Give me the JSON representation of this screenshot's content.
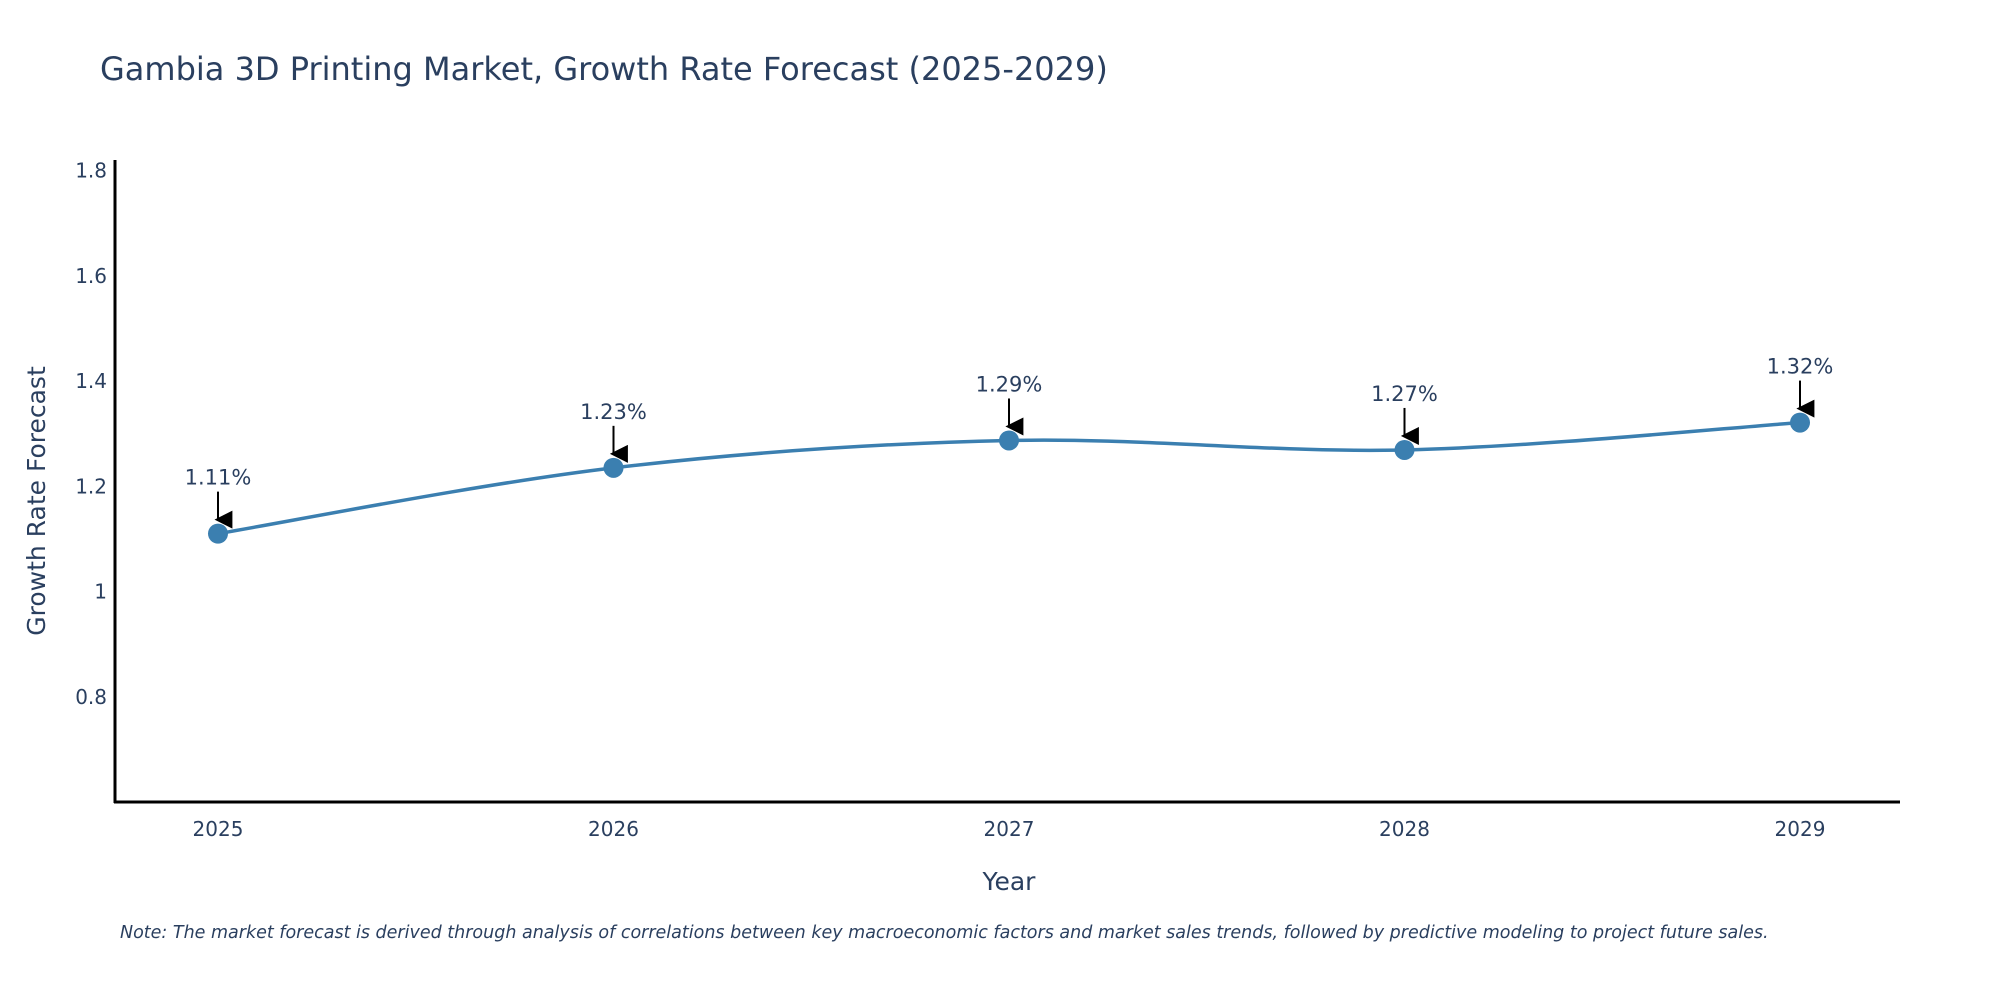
{
  "colors": {
    "line": "#3b7fb0",
    "marker": "#3b7fb0",
    "axis": "#000000",
    "arrow": "#000000",
    "text": "#2a3f5f"
  },
  "chart_data": {
    "type": "line",
    "title": "Gambia 3D Printing Market, Growth Rate Forecast (2025-2029)",
    "xlabel": "Year",
    "ylabel": "Growth Rate Forecast",
    "x": [
      "2025",
      "2026",
      "2027",
      "2028",
      "2029"
    ],
    "series": [
      {
        "name": "Growth Rate Forecast",
        "values": [
          1.11,
          1.235,
          1.287,
          1.269,
          1.321
        ]
      }
    ],
    "data_labels": [
      "1.11%",
      "1.23%",
      "1.29%",
      "1.27%",
      "1.32%"
    ],
    "ylim": [
      0.6,
      1.82
    ],
    "yticks": [
      0.8,
      1,
      1.2,
      1.4,
      1.6,
      1.8
    ],
    "ytick_labels": [
      "0.8",
      "1",
      "1.2",
      "1.4",
      "1.6",
      "1.8"
    ],
    "grid": false,
    "line_shape": "spline",
    "note": "Note: The market forecast is derived through analysis of correlations between key macroeconomic factors and market sales trends, followed by predictive modeling to project future sales."
  }
}
